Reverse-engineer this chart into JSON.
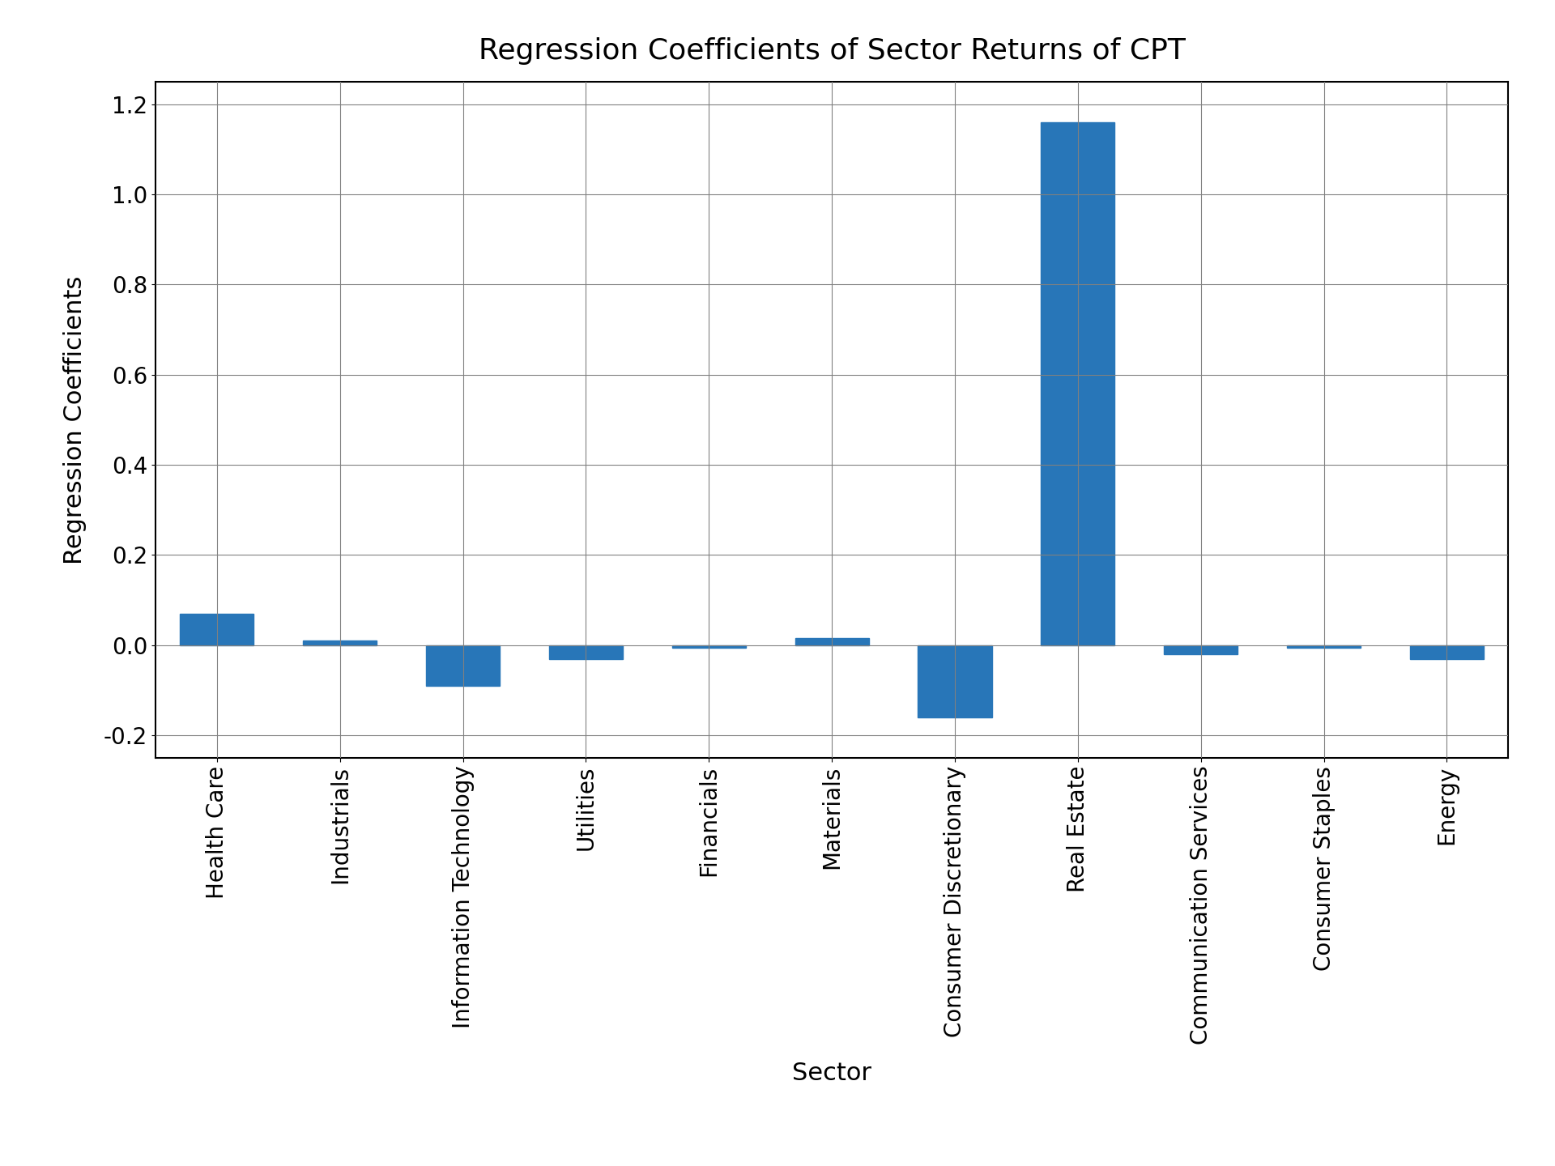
{
  "categories": [
    "Health Care",
    "Industrials",
    "Information Technology",
    "Utilities",
    "Financials",
    "Materials",
    "Consumer Discretionary",
    "Real Estate",
    "Communication Services",
    "Consumer Staples",
    "Energy"
  ],
  "values": [
    0.07,
    0.01,
    -0.09,
    -0.03,
    -0.005,
    0.015,
    -0.16,
    1.16,
    -0.02,
    -0.005,
    -0.03
  ],
  "bar_color": "#2876b8",
  "title": "Regression Coefficients of Sector Returns of CPT",
  "xlabel": "Sector",
  "ylabel": "Regression Coefficients",
  "ylim": [
    -0.25,
    1.25
  ],
  "yticks": [
    -0.2,
    0.0,
    0.2,
    0.4,
    0.6,
    0.8,
    1.0,
    1.2
  ],
  "title_fontsize": 26,
  "label_fontsize": 22,
  "tick_fontsize": 20,
  "grid": true,
  "background_color": "#ffffff"
}
